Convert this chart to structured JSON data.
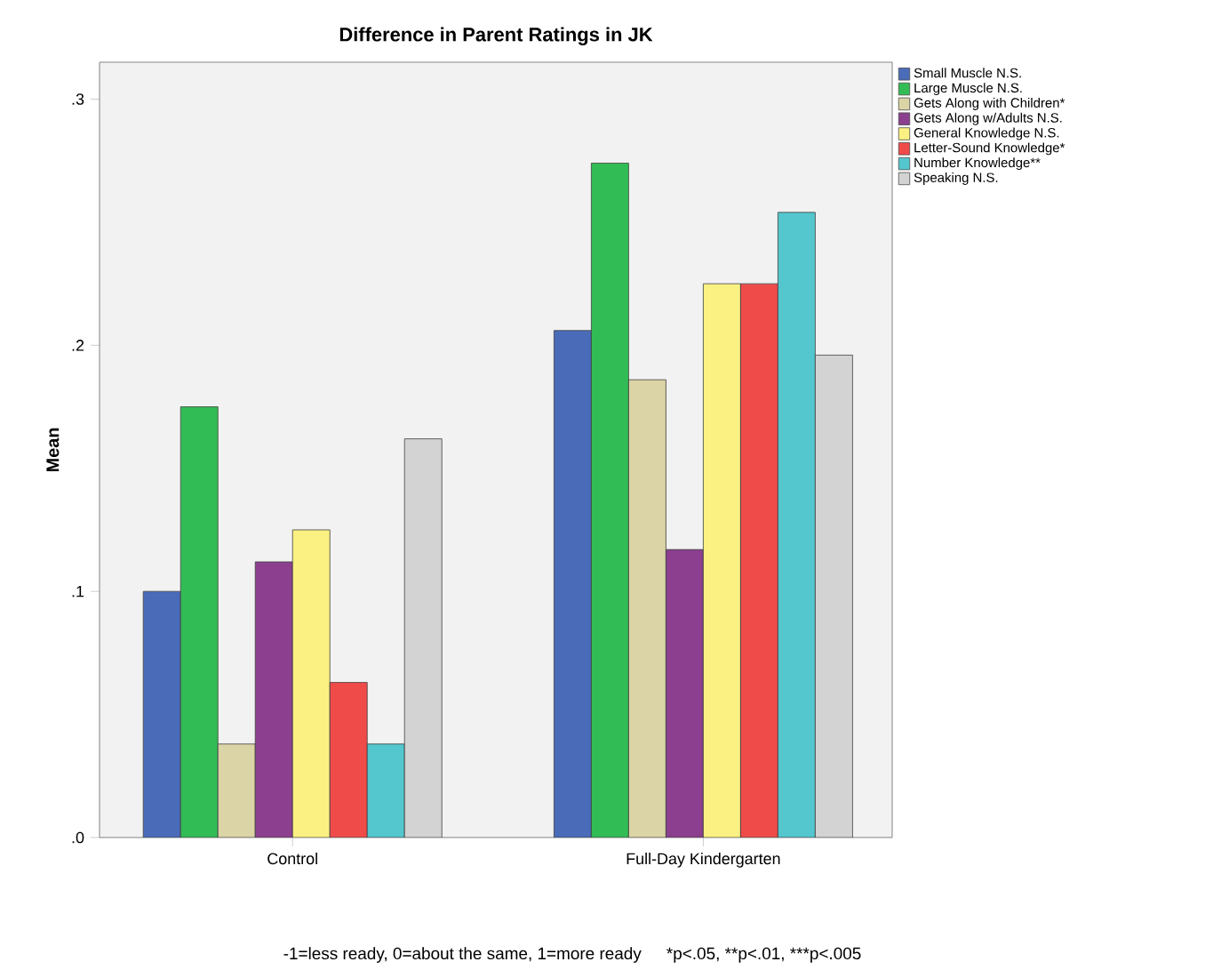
{
  "chart_data": {
    "type": "bar",
    "title": "Difference in Parent Ratings in JK",
    "ylabel": "Mean",
    "categories": [
      "Control",
      "Full-Day Kindergarten"
    ],
    "series": [
      {
        "name": "Small Muscle N.S.",
        "color": "#4a6bb8",
        "values": [
          0.1,
          0.206
        ]
      },
      {
        "name": "Large Muscle N.S.",
        "color": "#32bc55",
        "values": [
          0.175,
          0.274
        ]
      },
      {
        "name": "Gets Along with Children*",
        "color": "#dbd4a6",
        "values": [
          0.038,
          0.186
        ]
      },
      {
        "name": "Gets Along w/Adults N.S.",
        "color": "#8b3f8e",
        "values": [
          0.112,
          0.117
        ]
      },
      {
        "name": "General Knowledge N.S.",
        "color": "#fbf182",
        "values": [
          0.125,
          0.225
        ]
      },
      {
        "name": "Letter-Sound Knowledge*",
        "color": "#ef4b49",
        "values": [
          0.063,
          0.225
        ]
      },
      {
        "name": "Number Knowledge**",
        "color": "#54c6cd",
        "values": [
          0.038,
          0.254
        ]
      },
      {
        "name": "Speaking N.S.",
        "color": "#d3d3d3",
        "values": [
          0.162,
          0.196
        ]
      }
    ],
    "ylim": [
      0,
      0.315
    ],
    "yticks": [
      {
        "value": 0,
        "label": ".0"
      },
      {
        "value": 0.1,
        "label": ".1"
      },
      {
        "value": 0.2,
        "label": ".2"
      },
      {
        "value": 0.3,
        "label": ".3"
      }
    ],
    "grid": false,
    "legend": "top right",
    "annotations": [
      "-1=less ready, 0=about the same, 1=more ready",
      "*p<.05,",
      "**p<.01,",
      "***p<.005"
    ]
  }
}
